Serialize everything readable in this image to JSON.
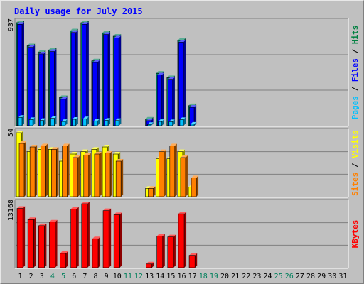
{
  "chart_data": {
    "type": "bar",
    "title": "Daily usage for July 2015",
    "categories": [
      "1",
      "2",
      "3",
      "4",
      "5",
      "6",
      "7",
      "8",
      "9",
      "10",
      "11",
      "12",
      "13",
      "14",
      "15",
      "16",
      "17",
      "18",
      "19",
      "20",
      "21",
      "22",
      "23",
      "24",
      "25",
      "26",
      "27",
      "28",
      "29",
      "30",
      "31"
    ],
    "weekend_days": [
      "4",
      "5",
      "11",
      "12",
      "18",
      "19",
      "25",
      "26"
    ],
    "panels": [
      {
        "id": "hits",
        "ymax": 937,
        "ymax_label": "937",
        "right_label": [
          {
            "text": "Pages",
            "color": "#00c0ff"
          },
          {
            "text": " / ",
            "color": "#000000"
          },
          {
            "text": "Files",
            "color": "#0000ff"
          },
          {
            "text": " / ",
            "color": "#000000"
          },
          {
            "text": "Hits",
            "color": "#008040"
          }
        ],
        "series": [
          {
            "name": "Hits",
            "color": "#00805c",
            "values": [
              937,
              727,
              668,
              690,
              256,
              863,
              937,
              590,
              845,
              814,
              0,
              0,
              60,
              477,
              437,
              776,
              182,
              0,
              0,
              0,
              0,
              0,
              0,
              0,
              0,
              0,
              0,
              0,
              0,
              0,
              0
            ]
          },
          {
            "name": "Files",
            "color": "#0000ff",
            "values": [
              922,
              713,
              653,
              675,
              240,
              848,
              922,
              575,
              830,
              798,
              0,
              0,
              46,
              461,
              422,
              760,
              167,
              0,
              0,
              0,
              0,
              0,
              0,
              0,
              0,
              0,
              0,
              0,
              0,
              0,
              0
            ]
          },
          {
            "name": "Pages",
            "color": "#00c0ff",
            "values": [
              76,
              56,
              48,
              68,
              38,
              58,
              63,
              43,
              49,
              47,
              0,
              0,
              11,
              38,
              36,
              56,
              14,
              0,
              0,
              0,
              0,
              0,
              0,
              0,
              0,
              0,
              0,
              0,
              0,
              0,
              0
            ]
          }
        ]
      },
      {
        "id": "visits",
        "ymax": 54,
        "ymax_label": "54",
        "right_label": [
          {
            "text": "Sites",
            "color": "#ff8000"
          },
          {
            "text": " / ",
            "color": "#000000"
          },
          {
            "text": "Visits",
            "color": "#ffff00"
          }
        ],
        "series": [
          {
            "name": "Visits",
            "color": "#ffff00",
            "values": [
              54,
              38,
              40,
              40,
              30,
              36,
              38,
              40,
              42,
              36,
              0,
              0,
              7,
              32,
              32,
              38,
              8,
              0,
              0,
              0,
              0,
              0,
              0,
              0,
              0,
              0,
              0,
              0,
              0,
              0,
              0
            ]
          },
          {
            "name": "Sites",
            "color": "#ff8000",
            "values": [
              45,
              42,
              43,
              40,
              43,
              33,
              35,
              36,
              37,
              30,
              0,
              0,
              7,
              38,
              43,
              33,
              16,
              0,
              0,
              0,
              0,
              0,
              0,
              0,
              0,
              0,
              0,
              0,
              0,
              0,
              0
            ]
          }
        ]
      },
      {
        "id": "kbytes",
        "ymax": 13168,
        "ymax_label": "13168",
        "right_label": [
          {
            "text": "KBytes",
            "color": "#ff0000"
          }
        ],
        "series": [
          {
            "name": "KBytes",
            "color": "#ff0000",
            "values": [
              12214,
              9907,
              8654,
              9404,
              2940,
              12091,
              13168,
              5964,
              11751,
              10913,
              0,
              0,
              766,
              6506,
              6347,
              11101,
              2536,
              0,
              0,
              0,
              0,
              0,
              0,
              0,
              0,
              0,
              0,
              0,
              0,
              0,
              0
            ]
          }
        ]
      }
    ],
    "colors": {
      "background": "#c0c0c0",
      "plot_background": "#c0c0c0",
      "title": "#0000ff",
      "weekday_label": "#000000",
      "weekend_label": "#00805c",
      "gridline": "#808080"
    },
    "grid": true
  }
}
